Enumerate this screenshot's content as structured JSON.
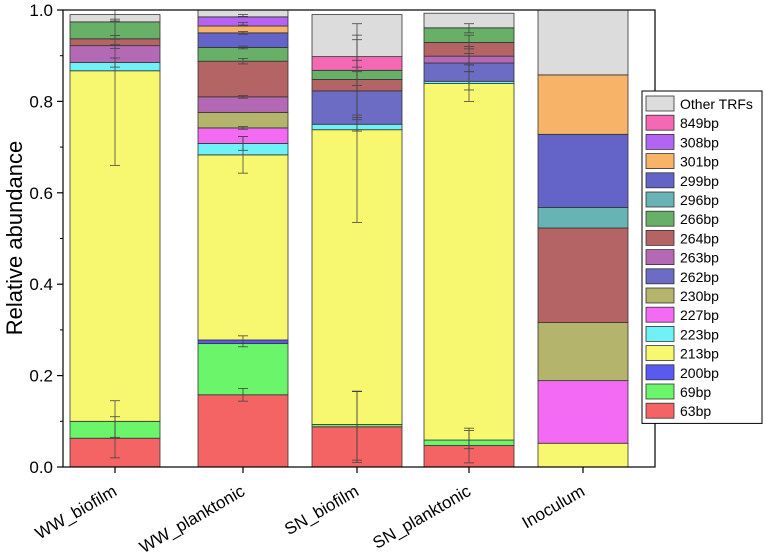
{
  "chart_data": {
    "type": "stacked-bar",
    "title": "",
    "xlabel": "",
    "ylabel": "Relative abundance",
    "ylim": [
      0,
      1.0
    ],
    "yticks": [
      "0.0",
      "0.2",
      "0.4",
      "0.6",
      "0.8",
      "1.0"
    ],
    "categories": [
      "WW_biofilm",
      "WW_planktonic",
      "SN_biofilm",
      "SN_planktonic",
      "Inoculum"
    ],
    "series": [
      {
        "name": "63bp",
        "color": "#f46464",
        "values": [
          0.063,
          0.158,
          0.088,
          0.047,
          0.0
        ]
      },
      {
        "name": "69bp",
        "color": "#6af56a",
        "values": [
          0.037,
          0.112,
          0.005,
          0.012,
          0.0
        ]
      },
      {
        "name": "200bp",
        "color": "#5a5af0",
        "values": [
          0.0,
          0.008,
          0.0,
          0.0,
          0.0
        ]
      },
      {
        "name": "213bp",
        "color": "#f8f870",
        "values": [
          0.767,
          0.405,
          0.645,
          0.78,
          0.052
        ]
      },
      {
        "name": "223bp",
        "color": "#6ef2f7",
        "values": [
          0.018,
          0.025,
          0.012,
          0.005,
          0.0
        ]
      },
      {
        "name": "227bp",
        "color": "#f36af3",
        "values": [
          0.0,
          0.034,
          0.0,
          0.0,
          0.137
        ]
      },
      {
        "name": "230bp",
        "color": "#b4b46c",
        "values": [
          0.0,
          0.034,
          0.0,
          0.0,
          0.127
        ]
      },
      {
        "name": "262bp",
        "color": "#6c6cc4",
        "values": [
          0.0,
          0.0,
          0.073,
          0.04,
          0.0
        ]
      },
      {
        "name": "263bp",
        "color": "#b469b4",
        "values": [
          0.037,
          0.034,
          0.0,
          0.015,
          0.0
        ]
      },
      {
        "name": "264bp",
        "color": "#b46464",
        "values": [
          0.015,
          0.078,
          0.025,
          0.03,
          0.207
        ]
      },
      {
        "name": "266bp",
        "color": "#68b068",
        "values": [
          0.037,
          0.03,
          0.02,
          0.032,
          0.0
        ]
      },
      {
        "name": "296bp",
        "color": "#68b4b4",
        "values": [
          0.0,
          0.0,
          0.0,
          0.0,
          0.045
        ]
      },
      {
        "name": "299bp",
        "color": "#6464c8",
        "values": [
          0.0,
          0.032,
          0.0,
          0.0,
          0.16
        ]
      },
      {
        "name": "301bp",
        "color": "#f7b468",
        "values": [
          0.0,
          0.015,
          0.0,
          0.0,
          0.13
        ]
      },
      {
        "name": "308bp",
        "color": "#b464f2",
        "values": [
          0.0,
          0.02,
          0.0,
          0.0,
          0.0
        ]
      },
      {
        "name": "849bp",
        "color": "#f468b4",
        "values": [
          0.0,
          0.0,
          0.03,
          0.0,
          0.0
        ]
      },
      {
        "name": "Other TRFs",
        "color": "#dcdcdc",
        "values": [
          0.016,
          0.015,
          0.092,
          0.032,
          0.142
        ]
      }
    ],
    "error_bars": [
      {
        "category": "WW_biofilm",
        "y": 0.065,
        "err": 0.045
      },
      {
        "category": "WW_biofilm",
        "y": 0.105,
        "err": 0.04
      },
      {
        "category": "WW_biofilm",
        "y": 0.87,
        "err": 0.21
      },
      {
        "category": "WW_biofilm",
        "y": 0.885,
        "err": 0.01
      },
      {
        "category": "WW_biofilm",
        "y": 0.92,
        "err": 0.004
      },
      {
        "category": "WW_biofilm",
        "y": 0.94,
        "err": 0.004
      },
      {
        "category": "WW_biofilm",
        "y": 0.978,
        "err": 0.002
      },
      {
        "category": "WW_planktonic",
        "y": 0.158,
        "err": 0.014
      },
      {
        "category": "WW_planktonic",
        "y": 0.275,
        "err": 0.012
      },
      {
        "category": "WW_planktonic",
        "y": 0.683,
        "err": 0.04
      },
      {
        "category": "WW_planktonic",
        "y": 0.708,
        "err": 0.015
      },
      {
        "category": "WW_planktonic",
        "y": 0.742,
        "err": 0.003
      },
      {
        "category": "WW_planktonic",
        "y": 0.81,
        "err": 0.003
      },
      {
        "category": "WW_planktonic",
        "y": 0.888,
        "err": 0.006
      },
      {
        "category": "WW_planktonic",
        "y": 0.918,
        "err": 0.003
      },
      {
        "category": "WW_planktonic",
        "y": 0.95,
        "err": 0.003
      },
      {
        "category": "WW_planktonic",
        "y": 0.97,
        "err": 0.003
      },
      {
        "category": "WW_planktonic",
        "y": 0.988,
        "err": 0.002
      },
      {
        "category": "SN_biofilm",
        "y": 0.088,
        "err": 0.078
      },
      {
        "category": "SN_biofilm",
        "y": 0.09,
        "err": 0.075
      },
      {
        "category": "SN_biofilm",
        "y": 0.74,
        "err": 0.205
      },
      {
        "category": "SN_biofilm",
        "y": 0.75,
        "err": 0.015
      },
      {
        "category": "SN_biofilm",
        "y": 0.825,
        "err": 0.065
      },
      {
        "category": "SN_biofilm",
        "y": 0.85,
        "err": 0.015
      },
      {
        "category": "SN_biofilm",
        "y": 0.87,
        "err": 0.1
      },
      {
        "category": "SN_biofilm",
        "y": 0.905,
        "err": 0.03
      },
      {
        "category": "SN_planktonic",
        "y": 0.047,
        "err": 0.038
      },
      {
        "category": "SN_planktonic",
        "y": 0.06,
        "err": 0.02
      },
      {
        "category": "SN_planktonic",
        "y": 0.84,
        "err": 0.04
      },
      {
        "category": "SN_planktonic",
        "y": 0.845,
        "err": 0.02
      },
      {
        "category": "SN_planktonic",
        "y": 0.885,
        "err": 0.02
      },
      {
        "category": "SN_planktonic",
        "y": 0.9,
        "err": 0.02
      },
      {
        "category": "SN_planktonic",
        "y": 0.93,
        "err": 0.015
      },
      {
        "category": "SN_planktonic",
        "y": 0.96,
        "err": 0.01
      }
    ],
    "legend_position": "right"
  }
}
